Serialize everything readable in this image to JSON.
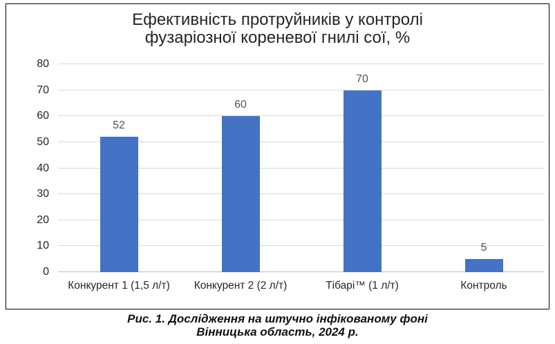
{
  "figure": {
    "caption_line1": "Рис. 1. Дослідження на штучно інфікованому фоні",
    "caption_line2": "Вінницька область, 2024 р."
  },
  "chart_data": {
    "type": "bar",
    "title": "Ефективність протруйників у контролі фузаріозної кореневої гнилі сої, %",
    "title_lines": [
      "Ефективність протруйників у контролі",
      "фузаріозної кореневої гнилі сої, %"
    ],
    "categories": [
      "Конкурент 1 (1,5 л/т)",
      "Конкурент 2 (2 л/т)",
      "Тібарі™ (1 л/т)",
      "Контроль"
    ],
    "values": [
      52,
      60,
      70,
      5
    ],
    "data_labels": [
      "52",
      "60",
      "70",
      "5"
    ],
    "xlabel": "",
    "ylabel": "",
    "ylim": [
      0,
      80
    ],
    "ytick_step": 10,
    "ytick_labels": [
      "0",
      "10",
      "20",
      "30",
      "40",
      "50",
      "60",
      "70",
      "80"
    ],
    "grid": true,
    "legend": "none",
    "bar_color": "#4472C4",
    "gridline_color": "#D9D9D9",
    "axis_line_color": "#BFBFBF",
    "data_label_color": "#545454",
    "axis_text_color": "#262626"
  }
}
